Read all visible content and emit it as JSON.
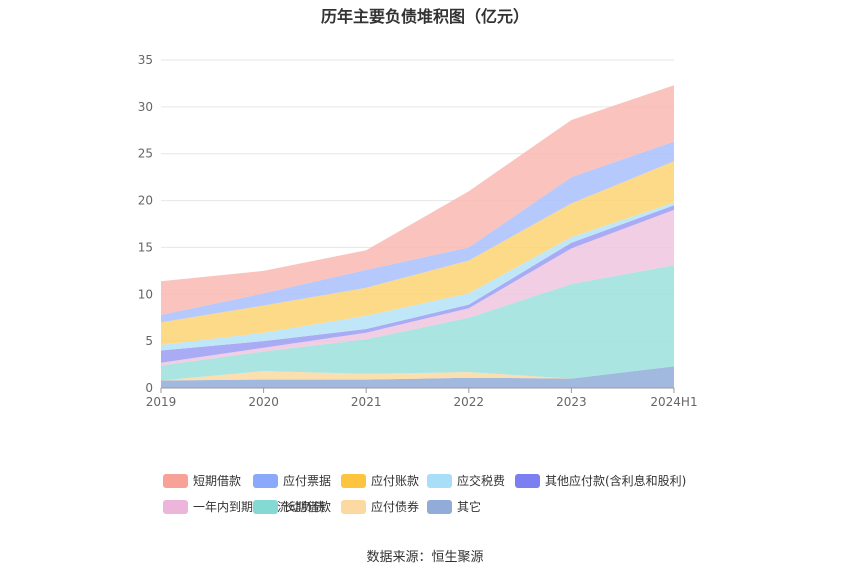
{
  "source_text": "数据来源：恒生聚源",
  "chart_data": {
    "type": "area",
    "stacked": true,
    "title": "历年主要负债堆积图（亿元）",
    "categories": [
      "2019",
      "2020",
      "2021",
      "2022",
      "2023",
      "2024H1"
    ],
    "y_ticks": [
      "0",
      "5",
      "10",
      "15",
      "20",
      "25",
      "30",
      "35"
    ],
    "ylim": [
      0,
      35
    ],
    "grid": true,
    "legend_position": "bottom",
    "series": [
      {
        "name": "其它",
        "color": "#91acd9",
        "values": [
          0.8,
          0.9,
          0.9,
          1.1,
          1.0,
          2.3
        ]
      },
      {
        "name": "应付债券",
        "color": "#fcd9a0",
        "values": [
          0.0,
          0.9,
          0.6,
          0.6,
          0.0,
          0.0
        ]
      },
      {
        "name": "长期借款",
        "color": "#9be0dc",
        "values": [
          1.6,
          2.1,
          3.7,
          5.8,
          10.1,
          10.8
        ]
      },
      {
        "name": "一年内到期的非流动负债",
        "color": "#eec5df",
        "values": [
          0.3,
          0.4,
          0.7,
          1.0,
          3.8,
          5.9
        ]
      },
      {
        "name": "其他应付款(含利息和股利)",
        "color": "#9a9cf3",
        "values": [
          1.3,
          0.7,
          0.4,
          0.4,
          0.6,
          0.5
        ]
      },
      {
        "name": "应交税费",
        "color": "#b5e3f7",
        "values": [
          0.6,
          0.9,
          1.4,
          1.2,
          0.6,
          0.3
        ]
      },
      {
        "name": "应付账款",
        "color": "#fdd472",
        "values": [
          2.4,
          2.9,
          3.0,
          3.5,
          3.6,
          4.4
        ]
      },
      {
        "name": "应付票据",
        "color": "#a9c0fc",
        "values": [
          0.8,
          1.3,
          1.9,
          1.4,
          2.8,
          2.1
        ]
      },
      {
        "name": "短期借款",
        "color": "#f9b8b1",
        "values": [
          3.6,
          2.4,
          2.1,
          6.0,
          6.1,
          6.0
        ]
      }
    ]
  },
  "legend": [
    {
      "label": "短期借款",
      "color": "#f7a199"
    },
    {
      "label": "应付票据",
      "color": "#8aa9fb"
    },
    {
      "label": "应付账款",
      "color": "#fcc43f"
    },
    {
      "label": "应交税费",
      "color": "#a8def7"
    },
    {
      "label": "其他应付款(含利息和股利)",
      "color": "#7b7ff1"
    },
    {
      "label": "一年内到期的非流动负债",
      "color": "#ebb6da"
    },
    {
      "label": "长期借款",
      "color": "#84d9d3"
    },
    {
      "label": "应付债券",
      "color": "#fcd9a0"
    },
    {
      "label": "其它",
      "color": "#91acd9"
    }
  ]
}
